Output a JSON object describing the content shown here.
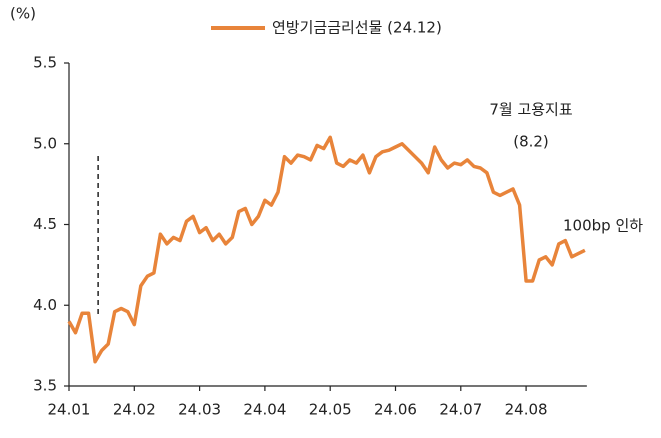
{
  "chart_data": {
    "type": "line",
    "y_unit": "(%)",
    "categories": [
      "24.01",
      null,
      null,
      null,
      null,
      null,
      null,
      null,
      null,
      null,
      "24.02",
      null,
      null,
      null,
      null,
      null,
      null,
      null,
      null,
      null,
      "24.03",
      null,
      null,
      null,
      null,
      null,
      null,
      null,
      null,
      null,
      "24.04",
      null,
      null,
      null,
      null,
      null,
      null,
      null,
      null,
      null,
      "24.05",
      null,
      null,
      null,
      null,
      null,
      null,
      null,
      null,
      null,
      "24.06",
      null,
      null,
      null,
      null,
      null,
      null,
      null,
      null,
      null,
      "24.07",
      null,
      null,
      null,
      null,
      null,
      null,
      null,
      null,
      null,
      "24.08",
      null,
      null,
      null,
      null,
      null,
      null,
      null,
      null,
      null
    ],
    "series": [
      {
        "name": "연방기금금리선물 (24.12)",
        "color": "#e8843a",
        "values": [
          3.9,
          3.83,
          3.95,
          3.95,
          3.65,
          3.72,
          3.76,
          3.96,
          3.98,
          3.96,
          3.88,
          4.12,
          4.18,
          4.2,
          4.44,
          4.38,
          4.42,
          4.4,
          4.52,
          4.55,
          4.45,
          4.48,
          4.4,
          4.44,
          4.38,
          4.42,
          4.58,
          4.6,
          4.5,
          4.55,
          4.65,
          4.62,
          4.7,
          4.92,
          4.88,
          4.93,
          4.92,
          4.9,
          4.99,
          4.97,
          5.04,
          4.88,
          4.86,
          4.9,
          4.88,
          4.93,
          4.82,
          4.92,
          4.95,
          4.96,
          4.98,
          5.0,
          4.96,
          4.92,
          4.88,
          4.82,
          4.98,
          4.9,
          4.85,
          4.88,
          4.87,
          4.9,
          4.86,
          4.85,
          4.82,
          4.7,
          4.68,
          4.7,
          4.72,
          4.62,
          4.15,
          4.15,
          4.28,
          4.3,
          4.25,
          4.38,
          4.4,
          4.3,
          4.32,
          4.34
        ]
      }
    ],
    "ylim": [
      3.5,
      5.5
    ],
    "yticks": [
      3.5,
      {
        "value": 4,
        "label": "4.0"
      },
      4.5,
      {
        "value": 5,
        "label": "5.0"
      },
      5.5
    ],
    "annotations": [
      "7월 고용지표",
      "(8.2)",
      "100bp 인하"
    ],
    "legend": "top"
  }
}
